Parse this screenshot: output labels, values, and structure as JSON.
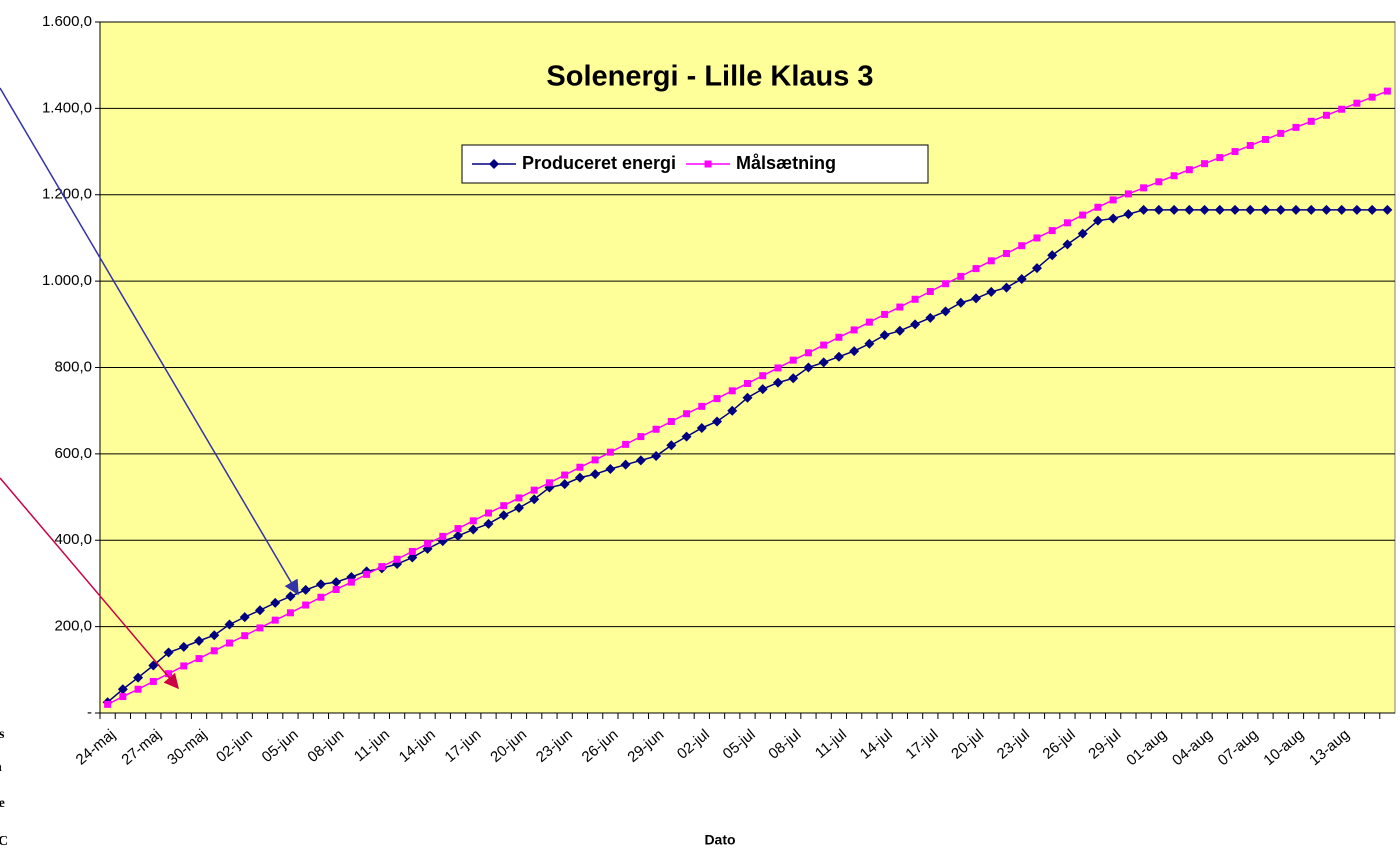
{
  "chart_data": {
    "type": "line",
    "title": "Solenergi  - Lille Klaus 3",
    "x_label": "Dato",
    "side_text": [
      "ys",
      "n",
      "te",
      "C"
    ],
    "categories": [
      "24-maj",
      null,
      null,
      "27-maj",
      null,
      null,
      "30-maj",
      null,
      null,
      "02-jun",
      null,
      null,
      "05-jun",
      null,
      null,
      "08-jun",
      null,
      null,
      "11-jun",
      null,
      null,
      "14-jun",
      null,
      null,
      "17-jun",
      null,
      null,
      "20-jun",
      null,
      null,
      "23-jun",
      null,
      null,
      "26-jun",
      null,
      null,
      "29-jun",
      null,
      null,
      "02-jul",
      null,
      null,
      "05-jul",
      null,
      null,
      "08-jul",
      null,
      null,
      "11-jul",
      null,
      null,
      "14-jul",
      null,
      null,
      "17-jul",
      null,
      null,
      "20-jul",
      null,
      null,
      "23-jul",
      null,
      null,
      "26-jul",
      null,
      null,
      "29-jul",
      null,
      null,
      "01-aug",
      null,
      null,
      "04-aug",
      null,
      null,
      "07-aug",
      null,
      null,
      "10-aug",
      null,
      null,
      "13-aug",
      null,
      null,
      null
    ],
    "series": [
      {
        "name": "Produceret energi",
        "color": "#000080",
        "marker": "diamond",
        "values": [
          25,
          55,
          82,
          110,
          140,
          153,
          167,
          180,
          205,
          222,
          238,
          255,
          270,
          285,
          298,
          303,
          315,
          328,
          335,
          345,
          360,
          380,
          398,
          410,
          425,
          438,
          458,
          475,
          495,
          522,
          530,
          545,
          553,
          565,
          575,
          585,
          595,
          620,
          640,
          660,
          675,
          700,
          730,
          750,
          765,
          775,
          800,
          812,
          825,
          838,
          855,
          875,
          885,
          900,
          915,
          930,
          950,
          960,
          975,
          985,
          1005,
          1030,
          1060,
          1085,
          1110,
          1140,
          1145,
          1155,
          1165,
          1165,
          1165,
          1165,
          1165,
          1165,
          1165,
          1165,
          1165,
          1165,
          1165,
          1165,
          1165,
          1165,
          1165,
          1165,
          1165
        ]
      },
      {
        "name": "Målsætning",
        "color": "#ff00ff",
        "marker": "square",
        "values": [
          20,
          38,
          55,
          73,
          91,
          109,
          126,
          144,
          162,
          179,
          197,
          215,
          232,
          250,
          268,
          286,
          303,
          321,
          339,
          356,
          374,
          392,
          409,
          427,
          445,
          463,
          480,
          498,
          516,
          533,
          551,
          569,
          586,
          604,
          622,
          640,
          657,
          675,
          693,
          710,
          728,
          746,
          763,
          781,
          799,
          817,
          834,
          852,
          870,
          887,
          905,
          923,
          940,
          958,
          976,
          994,
          1011,
          1029,
          1047,
          1064,
          1082,
          1100,
          1117,
          1135,
          1153,
          1171,
          1188,
          1202,
          1216,
          1230,
          1244,
          1258,
          1272,
          1286,
          1300,
          1314,
          1328,
          1342,
          1356,
          1370,
          1384,
          1398,
          1412,
          1426,
          1440
        ]
      }
    ],
    "ylim": [
      0,
      1600
    ],
    "yticks": [
      {
        "value": 0,
        "label": "-"
      },
      {
        "value": 200,
        "label": "200,0"
      },
      {
        "value": 400,
        "label": "400,0"
      },
      {
        "value": 600,
        "label": "600,0"
      },
      {
        "value": 800,
        "label": "800,0"
      },
      {
        "value": 1000,
        "label": "1.000,0"
      },
      {
        "value": 1200,
        "label": "1.200,0"
      },
      {
        "value": 1400,
        "label": "1.400,0"
      },
      {
        "value": 1600,
        "label": "1.600,0"
      }
    ],
    "grid": true,
    "legend": "top",
    "background": "#ffff99"
  }
}
